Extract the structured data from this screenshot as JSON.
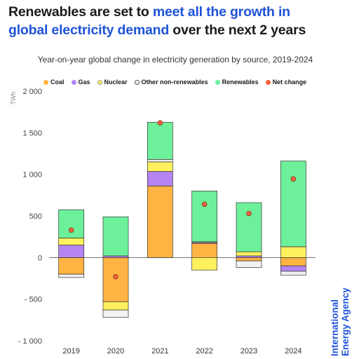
{
  "title": {
    "part1": "Renewables are set to ",
    "part2": "meet all the growth in",
    "part3": "global electricity demand",
    "part4": " over the next 2 years"
  },
  "brand": {
    "line1": "International",
    "line2": "Energy Agency",
    "color": "#1f53d9"
  },
  "colors": {
    "coal": "#ffb443",
    "gas": "#b485f2",
    "nuclear": "#fff15e",
    "other": "#f2f2f2",
    "renewables": "#6df09a",
    "net": "#f2623d",
    "accent": "#1f53d9"
  },
  "chart_data": {
    "type": "bar",
    "stacked": true,
    "title": "Year-on-year global change in electricity generation by source, 2019-2024",
    "ylabel": "TWh",
    "xlabel": "",
    "ylim": [
      -1000,
      2000
    ],
    "yticks": [
      -1000,
      -500,
      0,
      500,
      1000,
      1500,
      2000
    ],
    "ytick_labels": [
      "- 1 000",
      "- 500",
      "0",
      "500",
      "1 000",
      "1 500",
      "2 000"
    ],
    "categories": [
      "2019",
      "2020",
      "2021",
      "2022",
      "2023",
      "2024"
    ],
    "legend_position": "top",
    "grid": false,
    "series": [
      {
        "name": "Coal",
        "color_key": "coal",
        "values": [
          -200,
          -530,
          860,
          170,
          -40,
          -100
        ]
      },
      {
        "name": "Gas",
        "color_key": "gas",
        "values": [
          150,
          20,
          175,
          10,
          20,
          -65
        ]
      },
      {
        "name": "Nuclear",
        "color_key": "nuclear",
        "values": [
          85,
          -100,
          115,
          -150,
          50,
          130
        ]
      },
      {
        "name": "Other non-renewables",
        "color_key": "other",
        "values": [
          -40,
          -90,
          30,
          10,
          -80,
          -45
        ]
      },
      {
        "name": "Renewables",
        "color_key": "renewables",
        "values": [
          340,
          470,
          445,
          610,
          590,
          1030
        ]
      }
    ],
    "net_change": {
      "name": "Net change",
      "color_key": "net",
      "values": [
        330,
        -230,
        1620,
        640,
        530,
        945
      ]
    }
  }
}
